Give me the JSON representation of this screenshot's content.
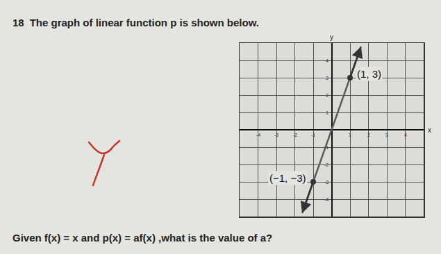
{
  "header": {
    "number": "18",
    "text": "The graph of linear function p is shown below."
  },
  "chart_data": {
    "type": "line",
    "xlabel": "x",
    "ylabel": "y",
    "x": [
      -1.6,
      -1,
      1,
      1.6
    ],
    "values": [
      -4.8,
      -3,
      3,
      4.8
    ],
    "color": "#5a5a5a",
    "points": [
      {
        "x": 1,
        "y": 3,
        "label": "(1, 3)"
      },
      {
        "x": -1,
        "y": -3,
        "label": "(−1, −3)"
      }
    ],
    "xlim": [
      -5,
      5
    ],
    "ylim": [
      -5,
      5
    ],
    "xticks": [
      -4,
      -3,
      -2,
      -1,
      1,
      2,
      3,
      4
    ],
    "yticks": [
      -4,
      -3,
      -2,
      -1,
      1,
      2,
      3,
      4
    ],
    "grid": true
  },
  "question": {
    "text": "Given f(x) = x and p(x) = af(x) ,what is the value of a?"
  }
}
